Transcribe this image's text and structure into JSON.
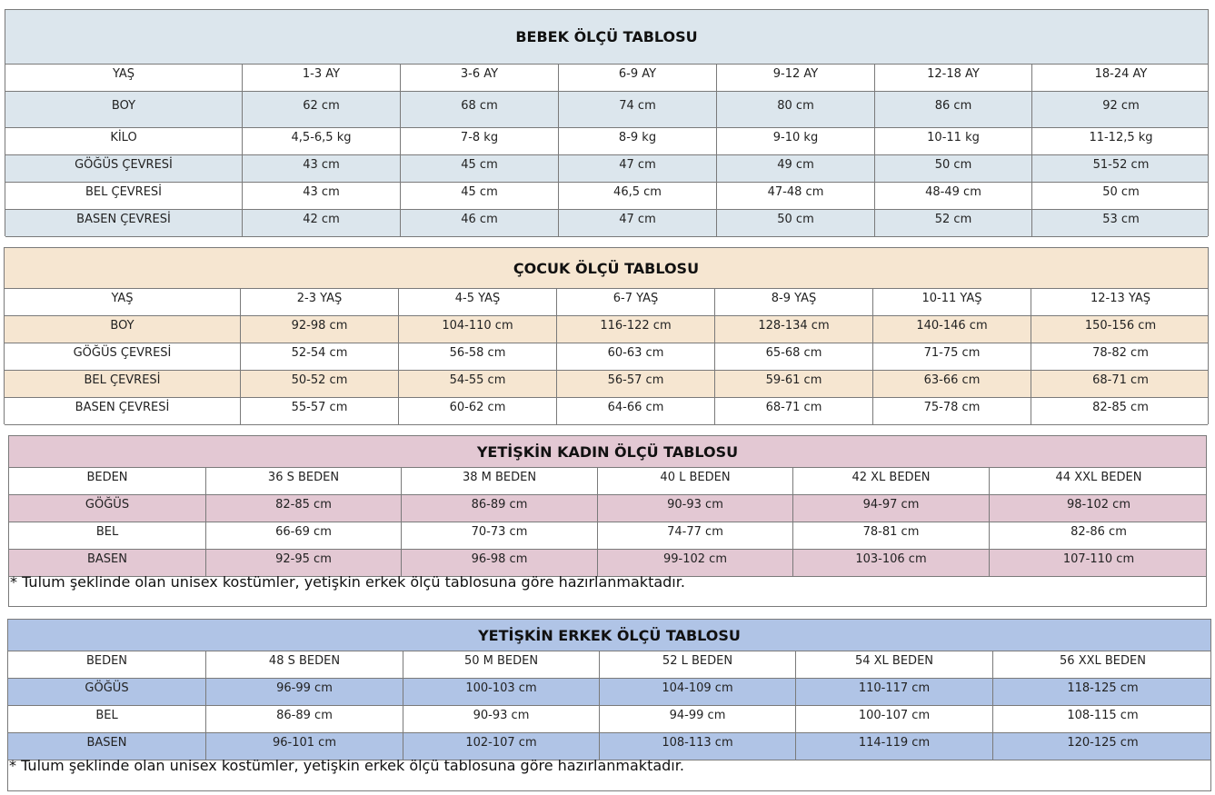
{
  "colors": {
    "bebek": "#dce6ed",
    "cocuk": "#f6e6d1",
    "kadin": "#e3c8d3",
    "erkek": "#b0c4e6"
  },
  "tables": [
    {
      "id": "bebek",
      "title": "BEBEK ÖLÇÜ TABLOSU",
      "rows": [
        [
          "YAŞ",
          "1-3 AY",
          "3-6 AY",
          "6-9 AY",
          "9-12 AY",
          "12-18 AY",
          "18-24 AY"
        ],
        [
          "BOY",
          "62 cm",
          "68 cm",
          "74 cm",
          "80 cm",
          "86 cm",
          "92 cm"
        ],
        [
          "KİLO",
          "4,5-6,5 kg",
          "7-8 kg",
          "8-9 kg",
          "9-10 kg",
          "10-11 kg",
          "11-12,5 kg"
        ],
        [
          "GÖĞÜS ÇEVRESİ",
          "43 cm",
          "45 cm",
          "47 cm",
          "49 cm",
          "50 cm",
          "51-52 cm"
        ],
        [
          "BEL ÇEVRESİ",
          "43 cm",
          "45 cm",
          "46,5 cm",
          "47-48 cm",
          "48-49 cm",
          "50 cm"
        ],
        [
          "BASEN ÇEVRESİ",
          "42 cm",
          "46 cm",
          "47 cm",
          "50 cm",
          "52 cm",
          "53 cm"
        ]
      ]
    },
    {
      "id": "cocuk",
      "title": "ÇOCUK ÖLÇÜ TABLOSU",
      "rows": [
        [
          "YAŞ",
          "2-3 YAŞ",
          "4-5 YAŞ",
          "6-7 YAŞ",
          "8-9 YAŞ",
          "10-11 YAŞ",
          "12-13 YAŞ"
        ],
        [
          "BOY",
          "92-98 cm",
          "104-110 cm",
          "116-122 cm",
          "128-134 cm",
          "140-146 cm",
          "150-156 cm"
        ],
        [
          "GÖĞÜS ÇEVRESİ",
          "52-54 cm",
          "56-58 cm",
          "60-63 cm",
          "65-68 cm",
          "71-75 cm",
          "78-82 cm"
        ],
        [
          "BEL ÇEVRESİ",
          "50-52 cm",
          "54-55 cm",
          "56-57 cm",
          "59-61 cm",
          "63-66 cm",
          "68-71 cm"
        ],
        [
          "BASEN ÇEVRESİ",
          "55-57 cm",
          "60-62 cm",
          "64-66 cm",
          "68-71 cm",
          "75-78 cm",
          "82-85 cm"
        ]
      ]
    },
    {
      "id": "kadin",
      "title": "YETİŞKİN KADIN ÖLÇÜ TABLOSU",
      "rows": [
        [
          "BEDEN",
          "36 S BEDEN",
          "38 M BEDEN",
          "40 L BEDEN",
          "42 XL BEDEN",
          "44 XXL BEDEN"
        ],
        [
          "GÖĞÜS",
          "82-85 cm",
          "86-89 cm",
          "90-93 cm",
          "94-97 cm",
          "98-102 cm"
        ],
        [
          "BEL",
          "66-69 cm",
          "70-73 cm",
          "74-77 cm",
          "78-81 cm",
          "82-86 cm"
        ],
        [
          "BASEN",
          "92-95 cm",
          "96-98 cm",
          "99-102 cm",
          "103-106 cm",
          "107-110 cm"
        ]
      ],
      "note": "* Tulum şeklinde olan unisex kostümler, yetişkin erkek ölçü tablosuna göre hazırlanmaktadır."
    },
    {
      "id": "erkek",
      "title": "YETİŞKİN ERKEK ÖLÇÜ TABLOSU",
      "rows": [
        [
          "BEDEN",
          "48 S BEDEN",
          "50 M BEDEN",
          "52 L BEDEN",
          "54 XL BEDEN",
          "56 XXL BEDEN"
        ],
        [
          "GÖĞÜS",
          "96-99 cm",
          "100-103 cm",
          "104-109 cm",
          "110-117 cm",
          "118-125 cm"
        ],
        [
          "BEL",
          "86-89 cm",
          "90-93 cm",
          "94-99 cm",
          "100-107 cm",
          "108-115 cm"
        ],
        [
          "BASEN",
          "96-101 cm",
          "102-107 cm",
          "108-113 cm",
          "114-119 cm",
          "120-125 cm"
        ]
      ],
      "note": "* Tulum şeklinde olan unisex kostümler, yetişkin erkek ölçü  tablosuna göre hazırlanmaktadır."
    }
  ]
}
